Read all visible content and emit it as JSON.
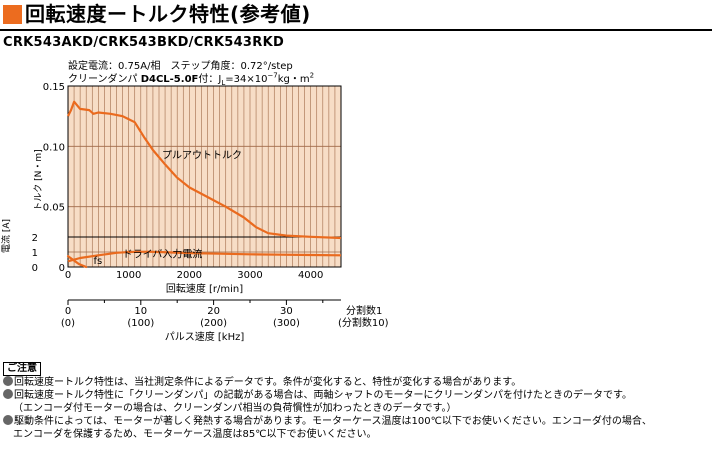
{
  "header": {
    "title": "回転速度ートルク特性(参考値)",
    "accent_color": "#ec6c1f"
  },
  "model": "CRK543AKD/CRK543BKD/CRK543RKD",
  "conditions": {
    "line1": "設定電流：0.75A/相　ステップ角度：0.72°/step",
    "line2_prefix": "クリーンダンパ ",
    "line2_bold": "D4CL-5.0F",
    "line2_suffix": "付：J",
    "line2_sub": "L",
    "line2_value": "=34×10",
    "line2_exp": "−7",
    "line2_unit": "kg・m",
    "line2_unit_exp": "2"
  },
  "chart_data": {
    "type": "line",
    "background": "#f7ddc6",
    "grid_color": "#a06a48",
    "curve_color": "#ea6a1e",
    "xlabel": "回転速度 [r/min]",
    "x_ticks": [
      "0",
      "1000",
      "2000",
      "3000",
      "4000"
    ],
    "xlim": [
      0,
      4500
    ],
    "torque": {
      "ylabel": "トルク [N・m]",
      "ylim": [
        0,
        0.15
      ],
      "y_ticks": [
        "0",
        "0.05",
        "0.10",
        "0.15"
      ],
      "series": [
        {
          "name": "プルアウトトルク",
          "x": [
            0,
            50,
            100,
            200,
            350,
            420,
            500,
            700,
            900,
            1100,
            1250,
            1400,
            1600,
            1800,
            2000,
            2300,
            2600,
            2900,
            3100,
            3300,
            3600,
            4000,
            4500
          ],
          "y": [
            0.125,
            0.13,
            0.137,
            0.131,
            0.13,
            0.127,
            0.128,
            0.127,
            0.125,
            0.12,
            0.108,
            0.097,
            0.085,
            0.074,
            0.066,
            0.058,
            0.05,
            0.041,
            0.033,
            0.028,
            0.026,
            0.025,
            0.024
          ]
        }
      ]
    },
    "current": {
      "ylabel": "電流 [A]",
      "ylim": [
        0,
        2
      ],
      "y_ticks": [
        "0",
        "1",
        "2"
      ],
      "series": [
        {
          "name": "ドライバ入力電流",
          "x": [
            0,
            200,
            500,
            800,
            1000,
            1300,
            1500,
            2000,
            2500,
            3000,
            3500,
            4000,
            4500
          ],
          "y": [
            0.38,
            0.6,
            0.78,
            0.95,
            1.0,
            1.02,
            1.0,
            0.93,
            0.89,
            0.85,
            0.82,
            0.8,
            0.78
          ]
        },
        {
          "name": "fs",
          "x": [
            0,
            180,
            300
          ],
          "y": [
            0.72,
            0.2,
            0
          ]
        }
      ]
    },
    "pulse_axis": {
      "ticks": [
        "0",
        "10",
        "20",
        "30"
      ],
      "ticks_div10": [
        "(0)",
        "(100)",
        "(200)",
        "(300)"
      ],
      "xlim": [
        0,
        37.5
      ],
      "label": "パルス速度 [kHz]",
      "div1_label": "分割数1",
      "div10_label": "(分割数10)"
    }
  },
  "notes": {
    "title": "ご注意",
    "items": [
      "回転速度ートルク特性は、当社測定条件によるデータです。条件が変化すると、特性が変化する場合があります。",
      "回転速度ートルク特性に「クリーンダンパ」の記載がある場合は、両軸シャフトのモーターにクリーンダンパを付けたときのデータです。",
      "（エンコーダ付モーターの場合は、クリーンダンパ相当の負荷慣性が加わったときのデータです。）",
      "駆動条件によっては、モーターが著しく発熱する場合があります。モーターケース温度は100℃以下でお使いください。エンコーダ付の場合、",
      "エンコーダを保護するため、モーターケース温度は85℃以下でお使いください。"
    ]
  }
}
